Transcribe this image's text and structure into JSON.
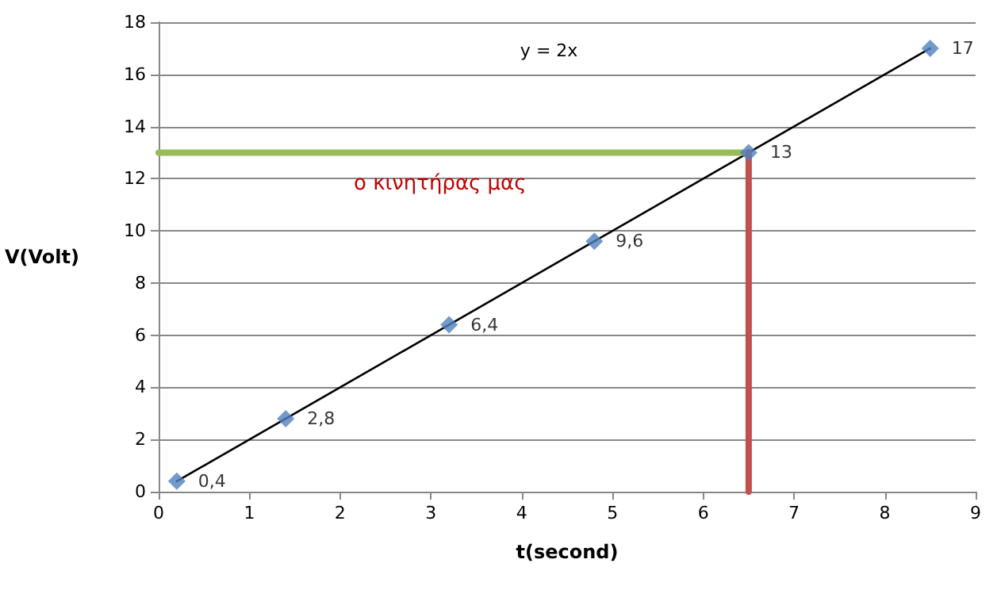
{
  "chart_data": {
    "type": "scatter",
    "xlabel": "t(second)",
    "ylabel": "V(Volt)",
    "xlim": [
      0,
      9
    ],
    "xticks": [
      0,
      1,
      2,
      3,
      4,
      5,
      6,
      7,
      8,
      9
    ],
    "ylim": [
      0,
      18
    ],
    "yticks": [
      0,
      2,
      4,
      6,
      8,
      10,
      12,
      14,
      16,
      18
    ],
    "grid": "y",
    "annotations": [
      "y = 2x",
      "ο κινητήρας μας"
    ],
    "series": [
      {
        "color": "#4f81bd",
        "marker": "diamond",
        "x": [
          0.2,
          1.4,
          3.2,
          4.8,
          6.5,
          8.5
        ],
        "values": [
          0.4,
          2.8,
          6.4,
          9.6,
          13,
          17
        ],
        "value_labels": [
          "0,4",
          "2,8",
          "6,4",
          "9,6",
          "13",
          "17"
        ]
      },
      {
        "type": "line",
        "color": "#000000",
        "marker": "none",
        "line_style": "solid",
        "x": [
          0.2,
          8.5
        ],
        "values": [
          0.4,
          17
        ]
      },
      {
        "type": "line",
        "color": "#9bbb59",
        "marker": "none",
        "line_style": "solid",
        "x": [
          0,
          6.5
        ],
        "values": [
          13,
          13
        ]
      },
      {
        "type": "line",
        "color": "#c0504d",
        "marker": "none",
        "line_style": "solid",
        "x": [
          6.5,
          6.5
        ],
        "values": [
          13,
          0
        ]
      }
    ]
  }
}
